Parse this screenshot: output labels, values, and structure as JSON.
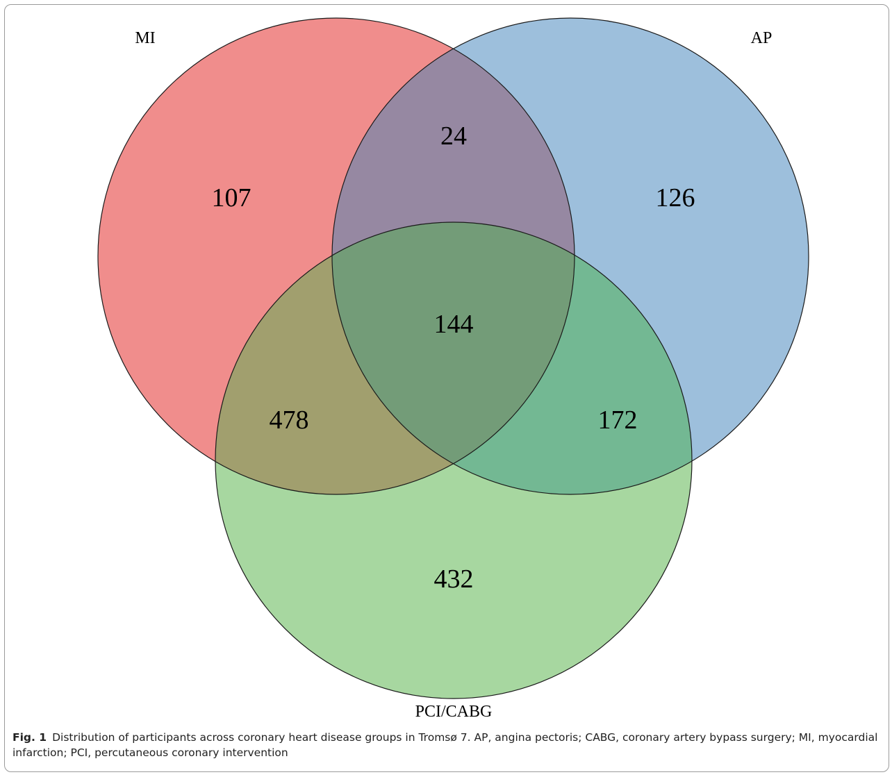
{
  "diagram": {
    "type": "venn3",
    "sets": [
      {
        "key": "mi",
        "label": "MI",
        "color": "#f08d8c"
      },
      {
        "key": "ap",
        "label": "AP",
        "color": "#9dbfdc"
      },
      {
        "key": "pci",
        "label": "PCI/CABG",
        "color": "#a7d7a0"
      }
    ],
    "regions": {
      "mi_only": "107",
      "ap_only": "126",
      "mi_ap": "24",
      "mi_ap_pci": "144",
      "mi_pci": "478",
      "ap_pci": "172",
      "pci_only": "432"
    },
    "region_colors": {
      "mi_ap": "#9688a2",
      "mi_pci": "#a19f6e",
      "ap_pci": "#73b893",
      "mi_ap_pci": "#739c78"
    }
  },
  "caption": {
    "label": "Fig. 1",
    "text": "Distribution of participants across coronary heart disease groups in Tromsø 7. AP, angina pectoris; CABG, coronary artery bypass surgery; MI, myocardial infarction; PCI, percutaneous coronary intervention"
  }
}
